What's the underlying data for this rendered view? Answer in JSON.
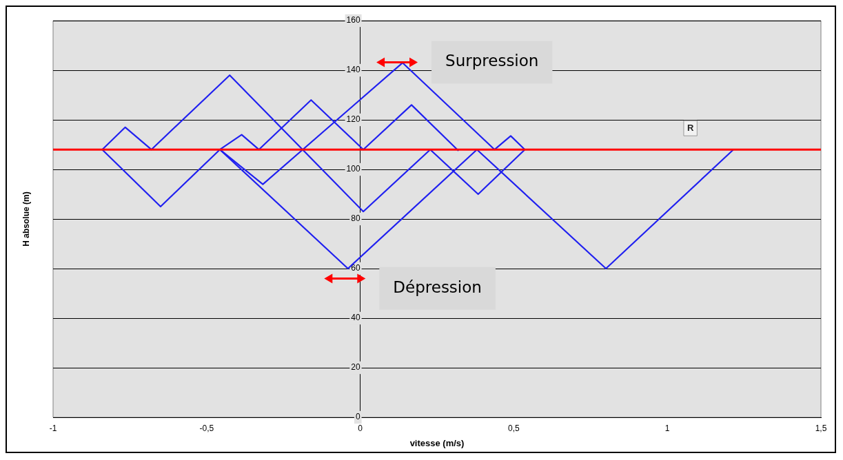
{
  "chart_data": {
    "type": "line",
    "xlabel": "vitesse (m/s)",
    "ylabel": "H absolue (m)",
    "xlim": [
      -1,
      1.5
    ],
    "xticks": [
      -1,
      {
        "value": -0.5,
        "label": "-0,5"
      },
      0,
      {
        "value": 0.5,
        "label": "0,5"
      },
      1,
      {
        "value": 1.5,
        "label": "1,5"
      }
    ],
    "ylim": [
      0,
      160
    ],
    "yticks": [
      0,
      20,
      40,
      60,
      80,
      100,
      120,
      140,
      160
    ],
    "grid": "y",
    "marker": "none",
    "line_style": "solid",
    "legend": false,
    "series": [
      {
        "color": "#2020f0",
        "x": [
          -0.84,
          -0.765,
          -0.68,
          -0.425,
          0.01,
          0.228,
          0.384,
          0.536
        ],
        "values": [
          108,
          117,
          108,
          138,
          83,
          108,
          90,
          108
        ]
      },
      {
        "color": "#2020f0",
        "x": [
          -0.84,
          -0.65,
          -0.457,
          -0.386,
          -0.33,
          -0.16,
          0.01,
          0.167,
          0.32
        ],
        "values": [
          108,
          85,
          108,
          114,
          108,
          128,
          108,
          126,
          107.5
        ]
      },
      {
        "color": "#2020f0",
        "x": [
          -0.457,
          -0.317,
          0.138,
          0.4375,
          0.49,
          0.536
        ],
        "values": [
          108,
          94,
          143,
          108,
          113.5,
          108
        ]
      },
      {
        "color": "#2020f0",
        "x": [
          -0.457,
          -0.04,
          0.38,
          0.8,
          1.215
        ],
        "values": [
          108,
          60,
          108,
          60,
          108
        ]
      }
    ],
    "ref_lines": [
      {
        "axis": "y",
        "value": 108,
        "label": "R",
        "color": "#ff0000"
      }
    ],
    "annotations": [
      "Surpression",
      "Dépression"
    ]
  }
}
